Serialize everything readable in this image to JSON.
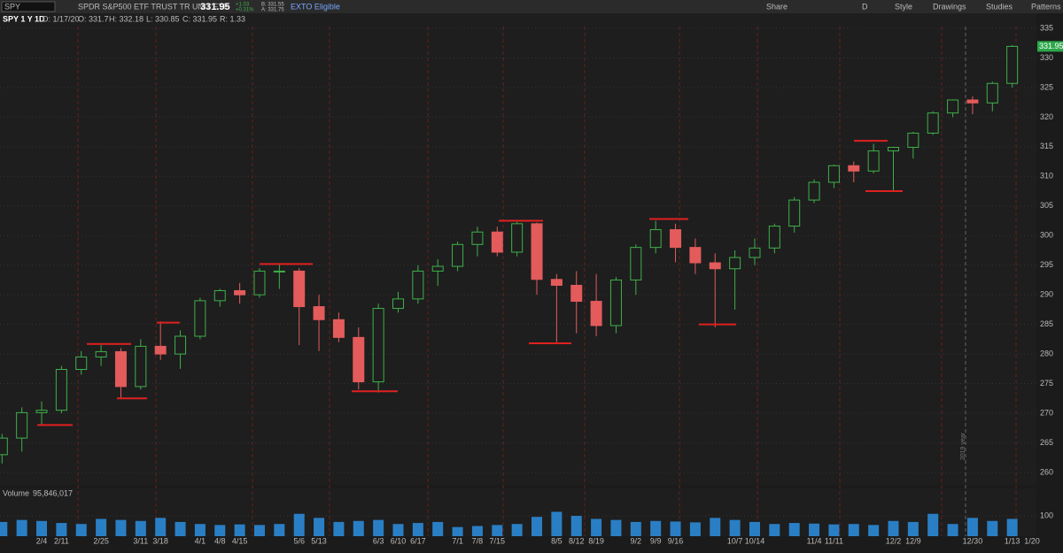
{
  "toolbar": {
    "symbol": "SPY",
    "description": "SPDR S&P500 ETF TRUST TR UNIT ETF",
    "last": "331.95",
    "change": "+1.03",
    "change_pct": "+0.31%",
    "bid": "B: 331.55",
    "ask": "A: 331.75",
    "badge": "EXTO Eligible",
    "buttons": [
      "Share",
      "D",
      "Style",
      "Drawings",
      "Studies",
      "Patterns"
    ]
  },
  "info_row": {
    "study": "SPY 1 Y 1D",
    "date": "D: 1/17/20",
    "open": "O: 331.7",
    "high": "H: 332.18",
    "low": "L: 330.85",
    "close": "C: 331.95",
    "range": "R: 1.33"
  },
  "chart_data": {
    "type": "candlestick",
    "year_marker": "2019 year",
    "last_price": 331.95,
    "categories": [
      null,
      null,
      "2/4",
      "2/11",
      null,
      "2/25",
      null,
      "3/11",
      "3/18",
      null,
      "4/1",
      "4/8",
      "4/15",
      null,
      null,
      "5/6",
      "5/13",
      null,
      null,
      "6/3",
      "6/10",
      "6/17",
      null,
      "7/1",
      "7/8",
      "7/15",
      null,
      null,
      "8/5",
      "8/12",
      "8/19",
      null,
      "9/2",
      "9/9",
      "9/16",
      null,
      null,
      "10/7",
      "10/14",
      null,
      null,
      "11/4",
      "11/11",
      null,
      null,
      "12/2",
      "12/9",
      null,
      null,
      "12/30",
      null,
      "1/13",
      "1/20"
    ],
    "open": [
      263.0,
      265.8,
      270.1,
      270.5,
      277.4,
      279.5,
      280.4,
      274.5,
      281.3,
      280.0,
      283.0,
      289.0,
      290.7,
      290.0,
      294.0,
      294.0,
      288.0,
      285.8,
      282.8,
      275.3,
      287.7,
      289.3,
      294.0,
      294.8,
      298.5,
      300.6,
      297.2,
      302.0,
      292.6,
      291.6,
      288.9,
      284.8,
      292.5,
      298.0,
      301.0,
      298.0,
      295.4,
      294.4,
      296.3,
      297.9,
      301.6,
      306.0,
      309.0,
      311.8,
      310.9,
      314.3,
      314.9,
      317.3,
      320.7,
      322.9,
      322.4,
      325.7,
      null
    ],
    "high": [
      266.5,
      271.0,
      272.0,
      278.0,
      280.5,
      281.5,
      281.0,
      282.5,
      285.5,
      284.0,
      289.5,
      291.0,
      292.0,
      294.5,
      295.3,
      294.5,
      290.0,
      287.0,
      284.5,
      288.5,
      290.5,
      295.0,
      296.0,
      299.0,
      301.5,
      301.5,
      302.3,
      302.2,
      293.5,
      294.0,
      293.5,
      293.0,
      298.5,
      302.5,
      302.0,
      299.5,
      297.0,
      297.5,
      299.5,
      302.0,
      306.5,
      309.5,
      312.0,
      312.5,
      315.5,
      315.0,
      317.5,
      321.0,
      323.0,
      323.5,
      326.0,
      332.18,
      null
    ],
    "low": [
      261.5,
      263.5,
      268.0,
      270.0,
      276.5,
      278.0,
      272.5,
      274.0,
      279.0,
      277.5,
      282.5,
      288.0,
      288.5,
      289.5,
      291.0,
      281.5,
      280.5,
      282.0,
      274.0,
      273.5,
      287.0,
      288.5,
      291.5,
      294.0,
      296.5,
      296.5,
      296.5,
      290.0,
      282.0,
      283.5,
      283.0,
      283.5,
      290.0,
      297.0,
      295.5,
      293.5,
      284.5,
      287.5,
      295.0,
      297.0,
      300.5,
      305.5,
      308.0,
      309.0,
      310.5,
      307.5,
      313.0,
      317.0,
      320.0,
      320.5,
      321.0,
      325.0,
      null
    ],
    "close": [
      265.8,
      270.1,
      270.5,
      277.4,
      279.5,
      280.4,
      274.5,
      281.3,
      280.0,
      283.0,
      289.0,
      290.7,
      290.0,
      294.0,
      294.0,
      288.0,
      285.8,
      282.8,
      275.3,
      287.7,
      289.3,
      294.0,
      294.8,
      298.5,
      300.6,
      297.2,
      302.0,
      292.6,
      291.6,
      288.9,
      284.8,
      292.5,
      298.0,
      301.0,
      298.0,
      295.4,
      294.4,
      296.3,
      297.9,
      301.6,
      306.0,
      309.0,
      311.8,
      310.9,
      314.3,
      314.9,
      317.3,
      320.7,
      322.9,
      322.4,
      325.7,
      331.95,
      null
    ],
    "up_color": "#3fb04a",
    "down_color": "#e35b5b",
    "ylim": [
      257.9,
      335.3
    ],
    "yticks": [
      260,
      265,
      270,
      275,
      280,
      285,
      290,
      295,
      300,
      305,
      310,
      315,
      320,
      325,
      330,
      335
    ],
    "grid": true,
    "levels": [
      268,
      281.7,
      272.5,
      285.3,
      295.2,
      273.7,
      302.5,
      281.8,
      302.8,
      285,
      316,
      307.5
    ],
    "level_color": "#e02020",
    "volume": {
      "name": "Volume",
      "label": "95,846,017",
      "color": "#2a7fc4",
      "ylim": [
        0,
        235
      ],
      "yticks": [
        100
      ],
      "values": [
        70,
        80,
        75,
        65,
        60,
        85,
        80,
        75,
        90,
        70,
        60,
        55,
        58,
        55,
        60,
        110,
        90,
        70,
        75,
        80,
        60,
        65,
        70,
        45,
        50,
        55,
        60,
        95,
        120,
        100,
        85,
        80,
        70,
        75,
        72,
        68,
        90,
        80,
        70,
        60,
        65,
        62,
        58,
        60,
        55,
        75,
        70,
        110,
        60,
        90,
        75,
        85,
        null
      ]
    }
  }
}
